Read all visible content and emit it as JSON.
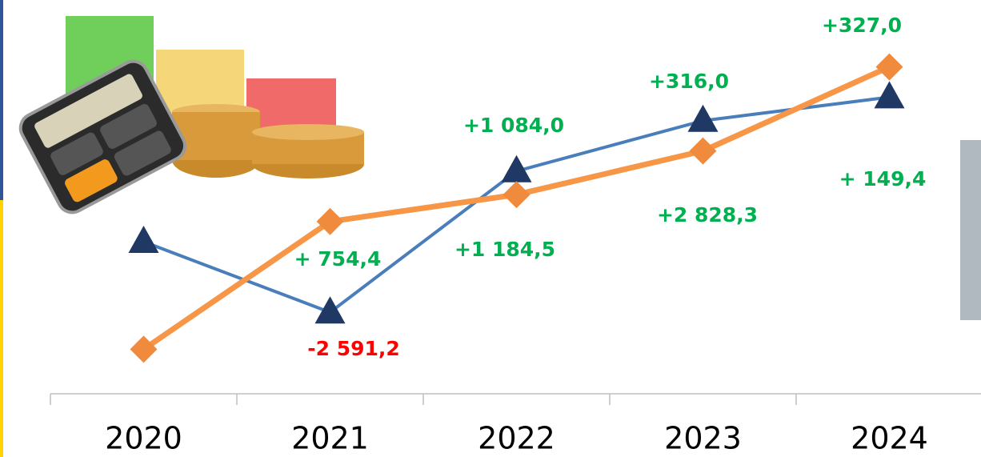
{
  "chart_data": {
    "type": "line",
    "categories": [
      "2020",
      "2021",
      "2022",
      "2023",
      "2024"
    ],
    "series": [
      {
        "color": "#4a7ebb",
        "marker": "triangle",
        "marker_color": "#1f3864",
        "values": [
          40,
          19,
          61,
          76,
          83
        ]
      },
      {
        "color": "#f79646",
        "marker": "diamond",
        "marker_color": "#f08a3c",
        "values": [
          8,
          46,
          54,
          67,
          92
        ]
      }
    ],
    "ylim": [
      0,
      100
    ],
    "annotations": [
      {
        "text": "+327,0",
        "color": "#00b050"
      },
      {
        "text": "+316,0",
        "color": "#00b050"
      },
      {
        "text": "+1 084,0",
        "color": "#00b050"
      },
      {
        "text": "+ 149,4",
        "color": "#00b050"
      },
      {
        "text": "+2 828,3",
        "color": "#00b050"
      },
      {
        "text": "+ 754,4",
        "color": "#00b050"
      },
      {
        "text": "+1 184,5",
        "color": "#00b050"
      },
      {
        "text": "-2 591,2",
        "color": "#ff0000"
      }
    ]
  }
}
